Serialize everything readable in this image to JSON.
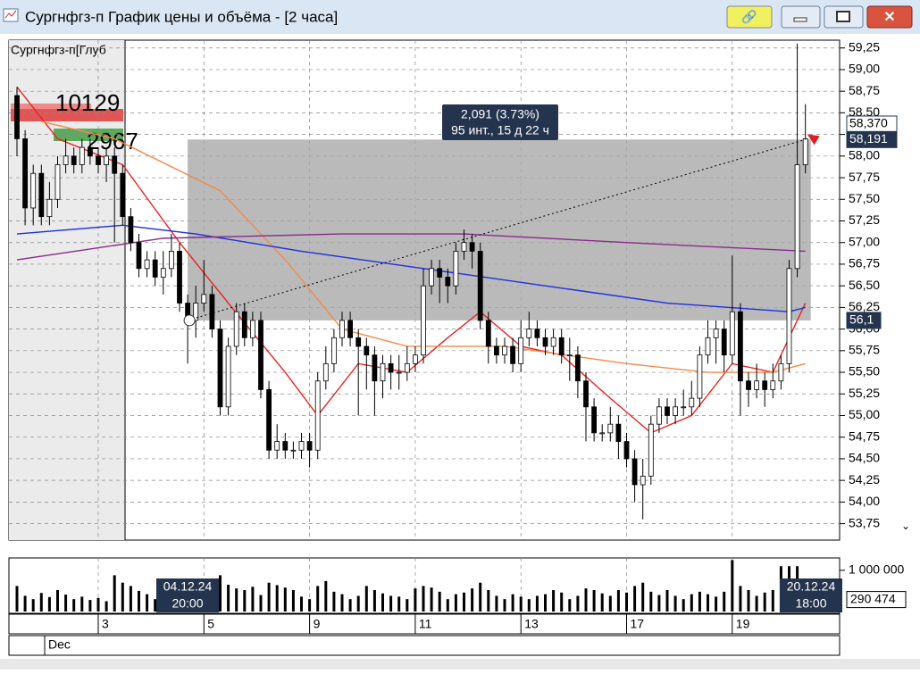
{
  "window_title": "Сургнфгз-п График цены и объёма - [2 часа]",
  "chart_data": {
    "type": "candlestick",
    "instrument_label": "Сургнфгз-п[Глуб",
    "month_label": "Dec",
    "categories": [
      null,
      null,
      null,
      null,
      null,
      null,
      null,
      null,
      null,
      null,
      "3",
      null,
      null,
      null,
      null,
      null,
      null,
      null,
      null,
      null,
      null,
      null,
      null,
      "5",
      null,
      null,
      null,
      null,
      null,
      null,
      null,
      null,
      null,
      null,
      null,
      null,
      "9",
      null,
      null,
      null,
      null,
      null,
      null,
      null,
      null,
      null,
      null,
      null,
      null,
      "11",
      null,
      null,
      null,
      null,
      null,
      null,
      null,
      null,
      null,
      null,
      null,
      null,
      "13",
      null,
      null,
      null,
      null,
      null,
      null,
      null,
      null,
      null,
      null,
      null,
      null,
      "17",
      null,
      null,
      null,
      null,
      null,
      null,
      null,
      null,
      null,
      null,
      null,
      null,
      "19",
      null,
      null,
      null,
      null,
      null,
      null,
      null,
      null,
      null
    ],
    "open": [
      58.7,
      58.2,
      57.4,
      57.8,
      57.3,
      57.5,
      57.9,
      58.0,
      57.9,
      58.1,
      58.0,
      57.9,
      58.0,
      57.8,
      57.3,
      57.0,
      56.7,
      56.8,
      56.6,
      56.7,
      56.9,
      56.3,
      56.1,
      56.3,
      56.4,
      56.0,
      55.1,
      55.8,
      56.2,
      55.9,
      56.1,
      55.3,
      54.6,
      54.7,
      54.6,
      54.6,
      54.7,
      54.6,
      55.4,
      55.6,
      55.9,
      56.1,
      55.9,
      55.8,
      55.7,
      55.4,
      55.6,
      55.5,
      55.5,
      55.6,
      55.7,
      56.5,
      56.7,
      56.6,
      56.5,
      56.9,
      57.0,
      56.9,
      56.1,
      55.8,
      55.7,
      55.8,
      55.6,
      55.9,
      56.0,
      55.9,
      55.8,
      55.9,
      55.7,
      55.7,
      55.4,
      55.1,
      54.8,
      54.8,
      54.9,
      54.7,
      54.5,
      54.2,
      54.3,
      54.9,
      55.1,
      55.0,
      55.1,
      55.1,
      55.2,
      55.7,
      55.9,
      56.0,
      55.7,
      56.2,
      55.4,
      55.3,
      55.4,
      55.3,
      55.4,
      55.6,
      56.7,
      57.9
    ],
    "high": [
      58.8,
      58.3,
      57.9,
      57.9,
      57.7,
      58.0,
      58.2,
      58.1,
      58.2,
      58.2,
      58.1,
      58.1,
      58.1,
      57.9,
      57.4,
      57.1,
      56.9,
      56.9,
      56.9,
      57.1,
      57.0,
      56.4,
      56.5,
      56.8,
      56.5,
      56.1,
      55.9,
      56.3,
      56.3,
      56.2,
      56.2,
      55.4,
      54.9,
      54.8,
      54.7,
      54.8,
      54.8,
      55.5,
      55.8,
      56.0,
      56.2,
      56.2,
      56.0,
      55.9,
      55.8,
      55.7,
      55.7,
      55.7,
      55.8,
      55.8,
      56.7,
      56.8,
      56.8,
      56.7,
      57.0,
      57.15,
      57.1,
      57.0,
      56.2,
      55.9,
      55.9,
      55.9,
      56.1,
      56.2,
      56.1,
      56.0,
      56.0,
      56.0,
      55.9,
      55.8,
      55.5,
      55.2,
      54.9,
      55.1,
      55.0,
      54.8,
      54.6,
      54.5,
      55.0,
      55.2,
      55.2,
      55.2,
      55.3,
      55.4,
      55.8,
      56.1,
      56.1,
      56.1,
      56.85,
      56.3,
      55.5,
      55.6,
      55.5,
      55.6,
      55.7,
      56.8,
      59.3,
      58.6
    ],
    "low": [
      58.0,
      57.2,
      57.2,
      57.2,
      57.2,
      57.4,
      57.8,
      57.8,
      57.8,
      57.9,
      57.8,
      57.7,
      57.0,
      57.2,
      56.9,
      56.6,
      56.6,
      56.5,
      56.4,
      56.6,
      56.2,
      55.6,
      55.9,
      56.2,
      55.9,
      55.0,
      55.0,
      55.7,
      55.8,
      55.8,
      55.2,
      54.5,
      54.5,
      54.5,
      54.5,
      54.5,
      54.4,
      54.5,
      55.3,
      55.5,
      55.8,
      55.8,
      55.0,
      55.3,
      55.0,
      55.2,
      55.3,
      55.3,
      55.4,
      55.5,
      55.6,
      56.4,
      56.3,
      56.3,
      56.4,
      56.8,
      56.7,
      56.0,
      55.6,
      55.6,
      55.6,
      55.5,
      55.5,
      55.8,
      55.8,
      55.7,
      55.7,
      55.6,
      55.4,
      55.2,
      54.7,
      54.7,
      54.7,
      54.7,
      54.5,
      54.4,
      54.0,
      53.8,
      54.2,
      54.8,
      54.9,
      54.9,
      55.0,
      55.0,
      55.1,
      55.6,
      55.6,
      55.5,
      55.6,
      55.0,
      55.1,
      55.2,
      55.1,
      55.2,
      55.3,
      55.5,
      56.6,
      57.8
    ],
    "close": [
      58.2,
      57.4,
      57.8,
      57.3,
      57.5,
      57.9,
      58.0,
      57.9,
      58.1,
      58.0,
      57.9,
      58.0,
      57.8,
      57.3,
      57.0,
      56.7,
      56.8,
      56.6,
      56.7,
      56.9,
      56.3,
      56.1,
      56.3,
      56.4,
      56.0,
      55.1,
      55.8,
      56.2,
      55.9,
      56.1,
      55.3,
      54.6,
      54.7,
      54.6,
      54.6,
      54.7,
      54.6,
      55.4,
      55.6,
      55.9,
      56.1,
      55.9,
      55.8,
      55.7,
      55.4,
      55.6,
      55.5,
      55.5,
      55.6,
      55.7,
      56.5,
      56.7,
      56.6,
      56.5,
      56.9,
      57.0,
      56.9,
      56.1,
      55.8,
      55.7,
      55.8,
      55.6,
      55.9,
      56.0,
      55.9,
      55.8,
      55.9,
      55.7,
      55.7,
      55.4,
      55.1,
      54.8,
      54.8,
      54.9,
      54.7,
      54.5,
      54.2,
      54.3,
      54.9,
      55.1,
      55.0,
      55.1,
      55.1,
      55.2,
      55.7,
      55.9,
      56.0,
      55.7,
      56.2,
      55.4,
      55.3,
      55.4,
      55.3,
      55.4,
      55.6,
      56.7,
      57.9,
      58.2
    ],
    "ylim": [
      53.56,
      59.34
    ],
    "yticks": [
      {
        "value": 59.25,
        "label": "59,25"
      },
      {
        "value": 59.0,
        "label": "59,00"
      },
      {
        "value": 58.75,
        "label": "58,75"
      },
      {
        "value": 58.5,
        "label": "58,50"
      },
      {
        "value": 58.25,
        "label": "58,25"
      },
      {
        "value": 58.0,
        "label": "58,00"
      },
      {
        "value": 57.75,
        "label": "57,75"
      },
      {
        "value": 57.5,
        "label": "57,50"
      },
      {
        "value": 57.25,
        "label": "57,25"
      },
      {
        "value": 57.0,
        "label": "57,00"
      },
      {
        "value": 56.75,
        "label": "56,75"
      },
      {
        "value": 56.5,
        "label": "56,50"
      },
      {
        "value": 56.25,
        "label": "56,25"
      },
      {
        "value": 56.0,
        "label": "56,00"
      },
      {
        "value": 55.75,
        "label": "55,75"
      },
      {
        "value": 55.5,
        "label": "55,50"
      },
      {
        "value": 55.25,
        "label": "55,25"
      },
      {
        "value": 55.0,
        "label": "55,00"
      },
      {
        "value": 54.75,
        "label": "54,75"
      },
      {
        "value": 54.5,
        "label": "54,50"
      },
      {
        "value": 54.25,
        "label": "54,25"
      },
      {
        "value": 54.0,
        "label": "54,00"
      },
      {
        "value": 53.75,
        "label": "53,75"
      }
    ],
    "grid": true,
    "price_tags": [
      {
        "value": 58.37,
        "label": "58,370"
      },
      {
        "value": 58.191,
        "label": "58,191"
      },
      {
        "value": 56.1,
        "label": "56,1"
      }
    ],
    "depth_labels": [
      "10129",
      "2967"
    ],
    "measure": {
      "text": "2,091 (3.73%)",
      "details": "95 инт., 15 д 22 ч"
    },
    "lines": [
      {
        "color": "#e8231f",
        "x": [
          0,
          5,
          13,
          20,
          26,
          33,
          37,
          42,
          48,
          53,
          57,
          62,
          67,
          73,
          78,
          83,
          88,
          93,
          97
        ],
        "values": [
          58.8,
          58.2,
          57.9,
          57.0,
          56.3,
          55.5,
          55.0,
          55.6,
          55.5,
          55.9,
          56.2,
          55.8,
          55.7,
          55.2,
          54.8,
          55.0,
          55.6,
          55.5,
          56.3
        ]
      },
      {
        "color": "#f4894a",
        "x": [
          3,
          12,
          25,
          33,
          40,
          48,
          60,
          75,
          85,
          93,
          97
        ],
        "values": [
          58.4,
          58.2,
          57.6,
          56.8,
          56.0,
          55.8,
          55.8,
          55.6,
          55.5,
          55.5,
          55.6
        ]
      },
      {
        "color": "#1c2fe0",
        "x": [
          0,
          13,
          22,
          35,
          50,
          65,
          80,
          95,
          97
        ],
        "values": [
          57.1,
          57.2,
          57.1,
          56.9,
          56.7,
          56.5,
          56.3,
          56.2,
          56.25
        ]
      },
      {
        "color": "#8a2a8a",
        "x": [
          0,
          18,
          40,
          55,
          75,
          97
        ],
        "values": [
          56.8,
          57.05,
          57.1,
          57.1,
          57.0,
          56.9
        ]
      }
    ],
    "volume": {
      "values": [
        620000,
        380000,
        300000,
        450000,
        350000,
        520000,
        410000,
        300000,
        360000,
        280000,
        330000,
        250000,
        880000,
        700000,
        620000,
        500000,
        420000,
        300000,
        380000,
        260000,
        300000,
        340000,
        240000,
        280000,
        420000,
        880000,
        650000,
        560000,
        520000,
        600000,
        400000,
        700000,
        640000,
        580000,
        520000,
        360000,
        300000,
        620000,
        740000,
        480000,
        420000,
        300000,
        380000,
        620000,
        520000,
        440000,
        380000,
        360000,
        300000,
        560000,
        620000,
        580000,
        480000,
        300000,
        420000,
        460000,
        560000,
        700000,
        520000,
        380000,
        300000,
        420000,
        360000,
        300000,
        380000,
        420000,
        520000,
        460000,
        300000,
        380000,
        560000,
        520000,
        440000,
        380000,
        520000,
        460000,
        620000,
        700000,
        480000,
        400000,
        520000,
        380000,
        300000,
        420000,
        480000,
        420000,
        360000,
        480000,
        1250000,
        620000,
        520000,
        380000,
        460000,
        520000,
        1100000,
        1100000,
        1100000,
        290474
      ],
      "ylim": [
        0,
        1300000
      ],
      "yticks": [
        {
          "value": 1000000,
          "label": "1 000 000"
        }
      ],
      "last": {
        "value": 290474,
        "label": "290 474"
      },
      "cursor_labels": [
        [
          "04.12.24",
          "20:00"
        ],
        [
          "20.12.24",
          "18:00"
        ]
      ]
    }
  }
}
